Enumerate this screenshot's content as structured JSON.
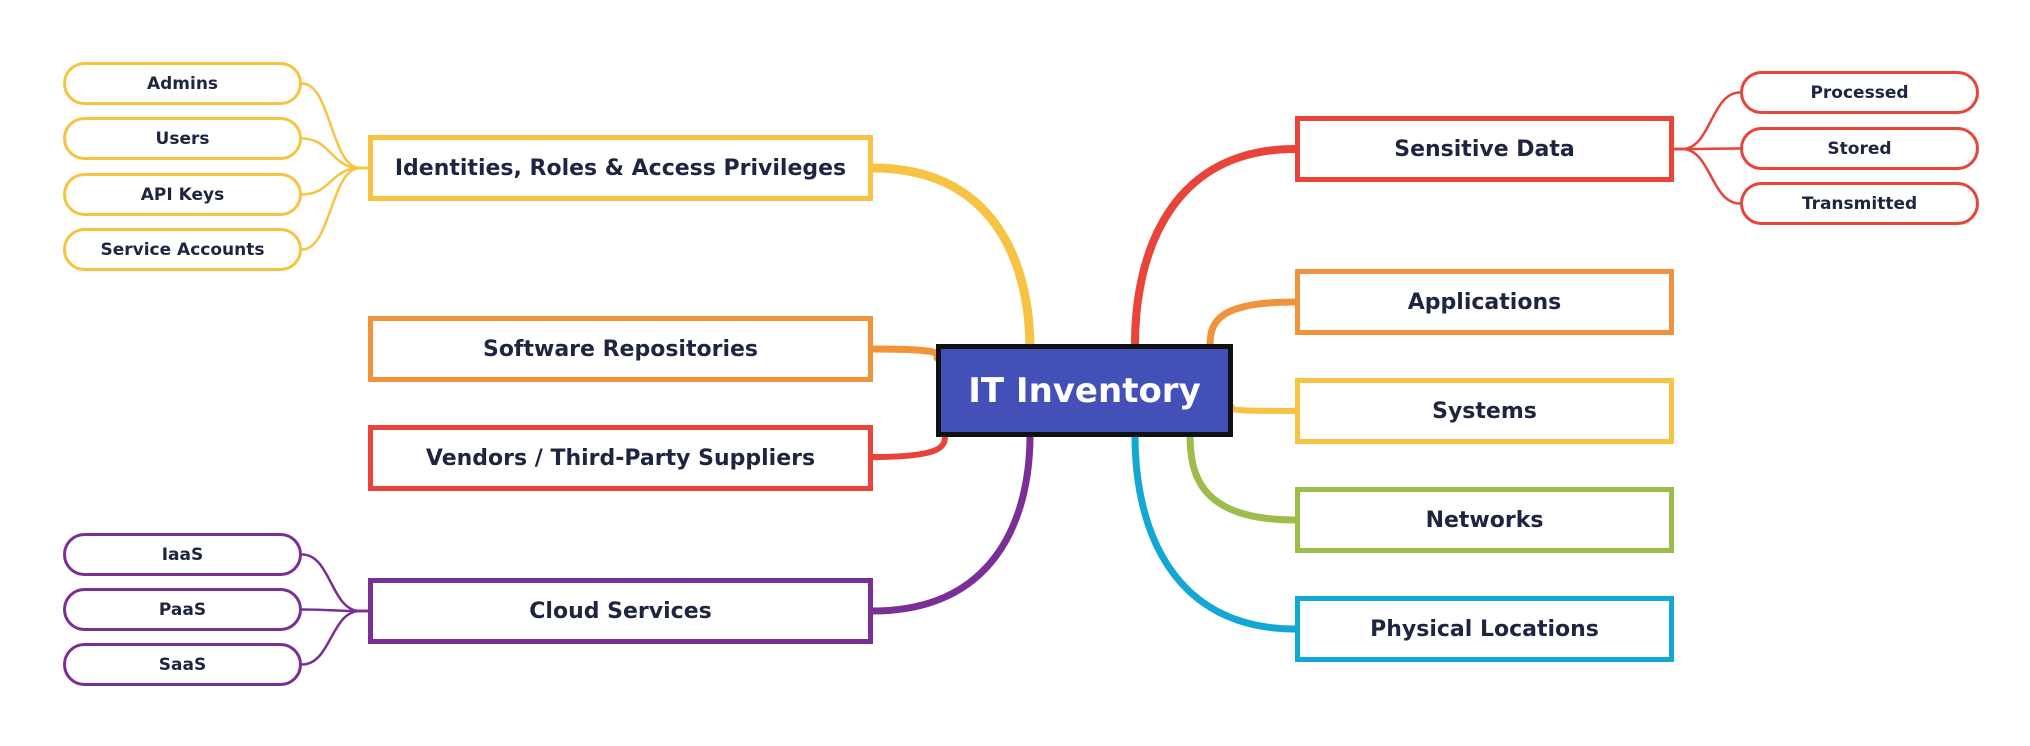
{
  "center": {
    "label": "IT Inventory"
  },
  "branches": {
    "identities": {
      "label": "Identities, Roles & Access Privileges",
      "color": "#f6c343",
      "children": [
        "Admins",
        "Users",
        "API Keys",
        "Service Accounts"
      ]
    },
    "software": {
      "label": "Software Repositories",
      "color": "#f0933a"
    },
    "vendors": {
      "label": "Vendors / Third-Party Suppliers",
      "color": "#e8443a"
    },
    "cloud": {
      "label": "Cloud Services",
      "color": "#7a2f96",
      "children": [
        "IaaS",
        "PaaS",
        "SaaS"
      ]
    },
    "sensitive": {
      "label": "Sensitive Data",
      "color": "#e8443a",
      "children": [
        "Processed",
        "Stored",
        "Transmitted"
      ]
    },
    "applications": {
      "label": "Applications",
      "color": "#f0933a"
    },
    "systems": {
      "label": "Systems",
      "color": "#f6c343"
    },
    "networks": {
      "label": "Networks",
      "color": "#9dbd4a"
    },
    "locations": {
      "label": "Physical Locations",
      "color": "#13a8d4"
    }
  }
}
